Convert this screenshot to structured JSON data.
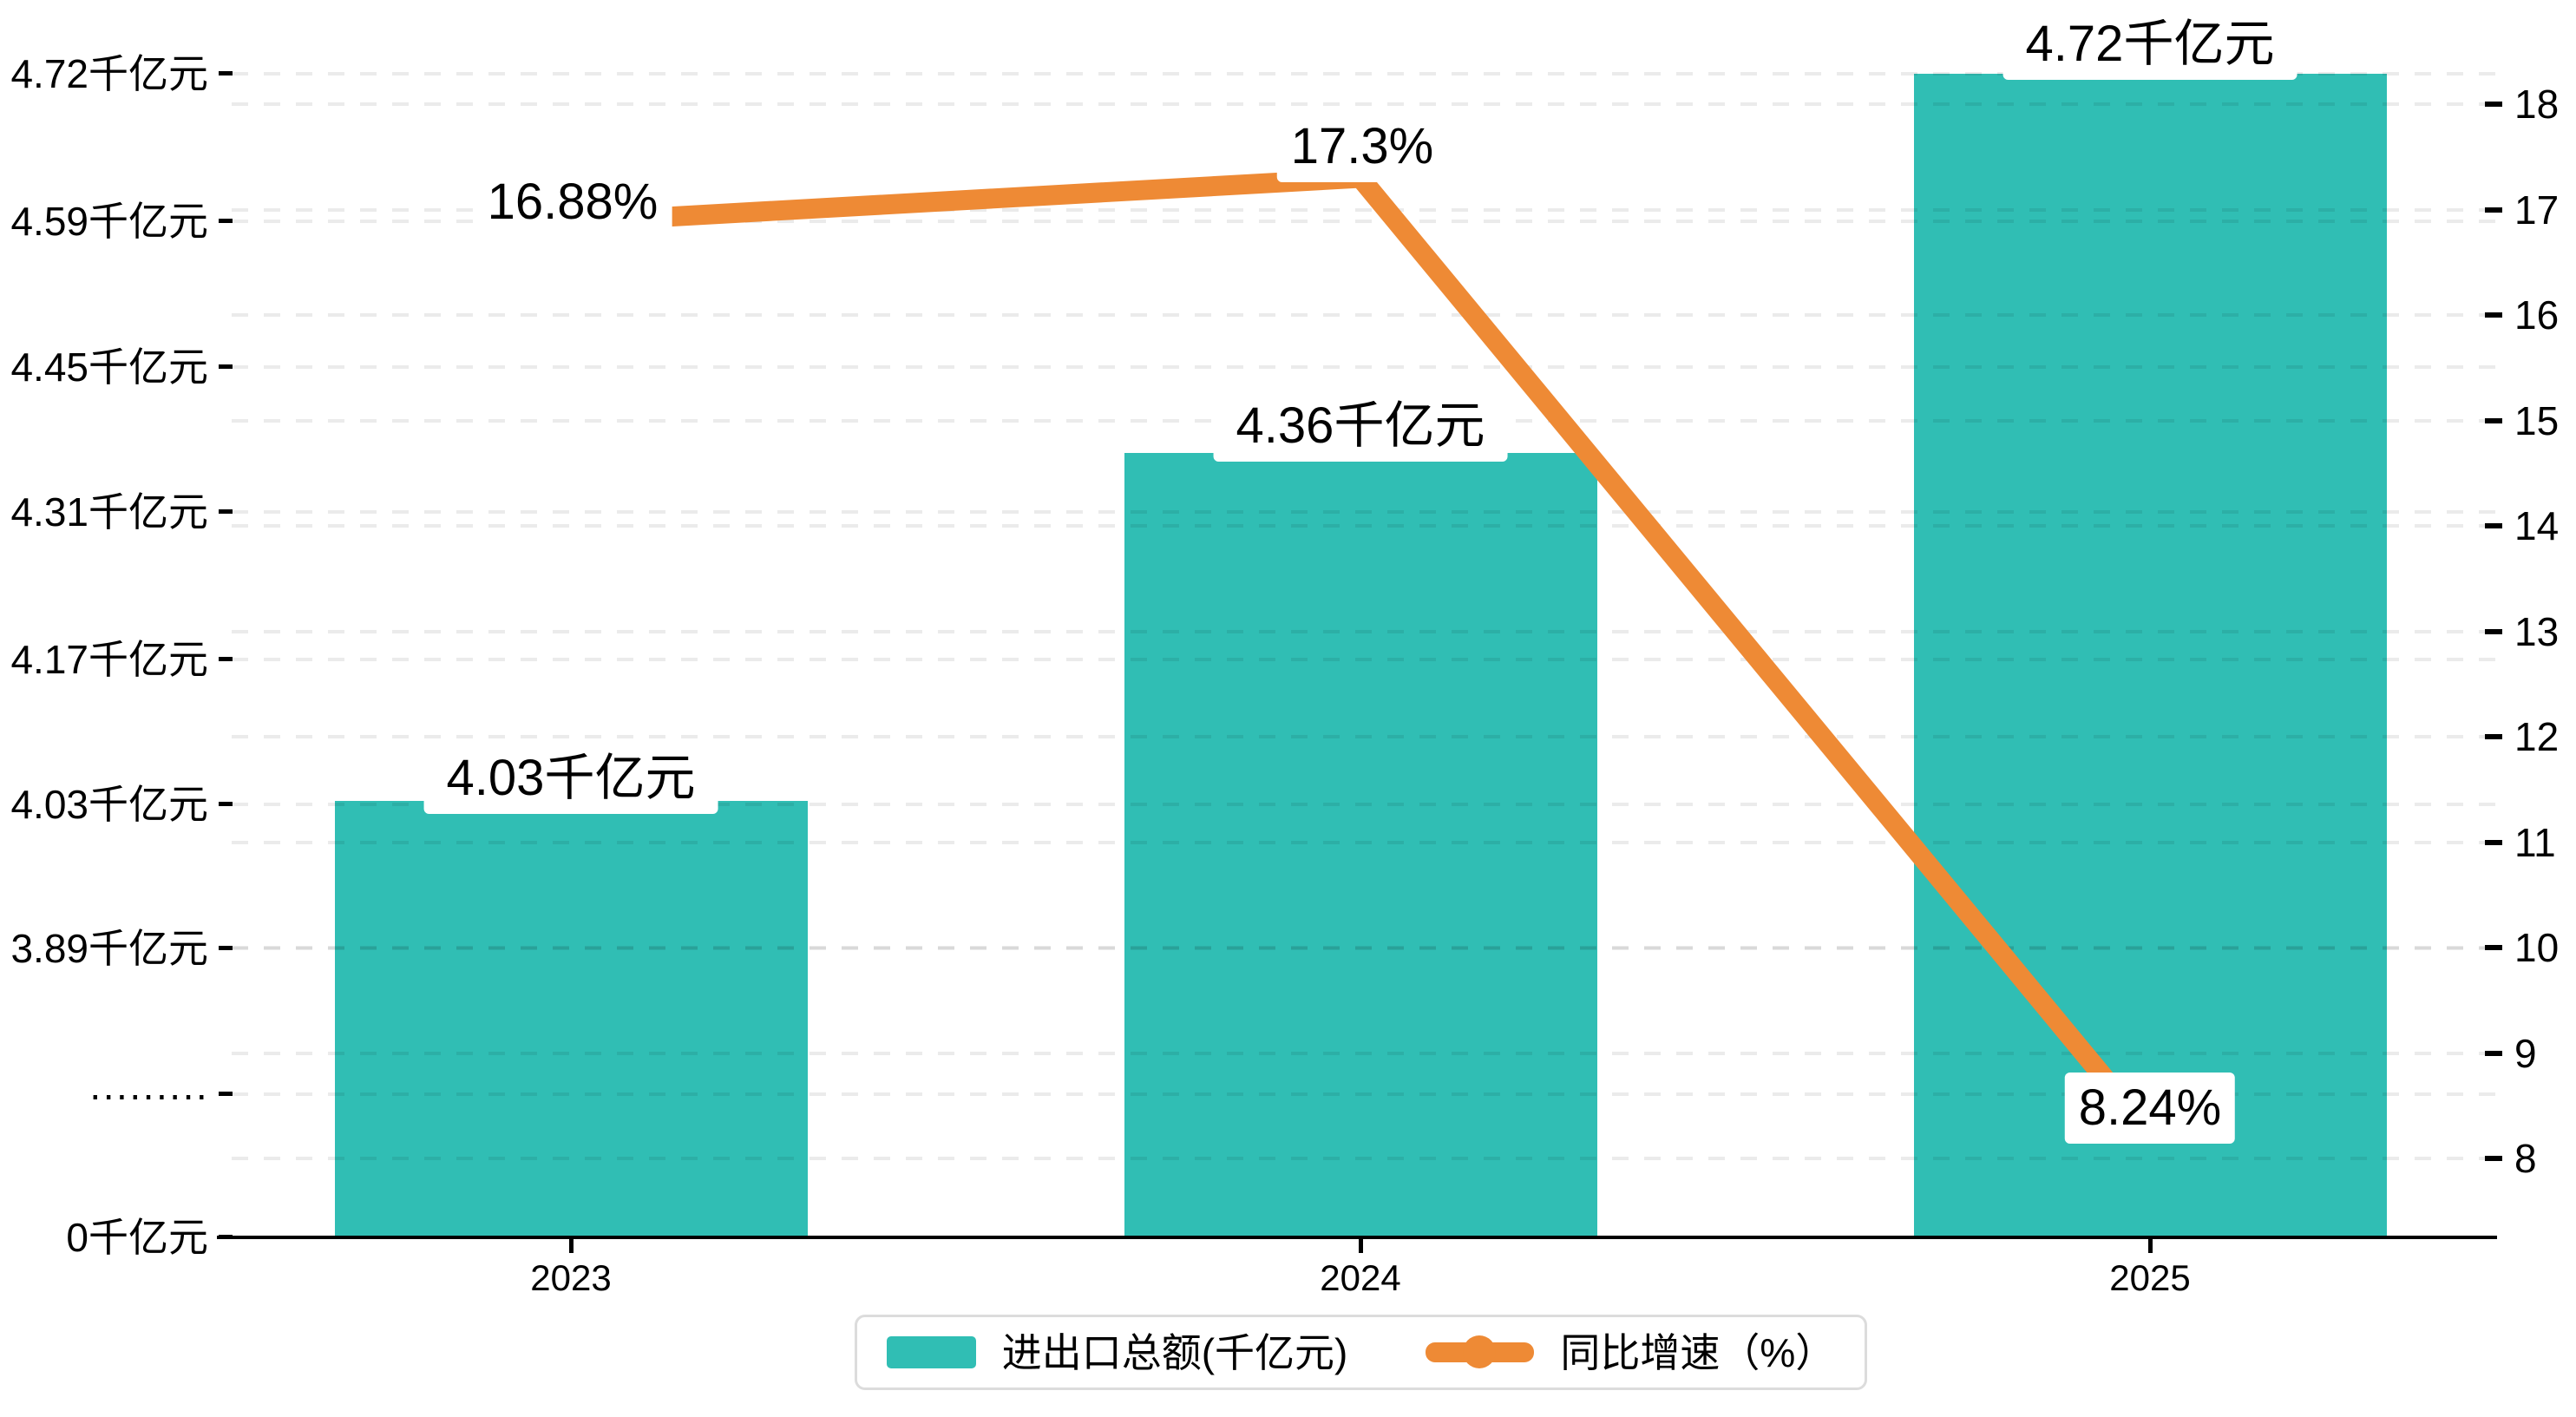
{
  "chart_data": {
    "type": "combo",
    "categories": [
      "2023",
      "2024",
      "2025"
    ],
    "series": [
      {
        "name": "进出口总额(千亿元)",
        "type": "bar",
        "axis": "left",
        "color": "#30BEB4",
        "values": [
          4.03,
          4.36,
          4.72
        ],
        "data_labels": [
          "4.03千亿元",
          "4.36千亿元",
          "4.72千亿元"
        ]
      },
      {
        "name": "同比增速（%）",
        "type": "line",
        "axis": "right",
        "color": "#EE8A35",
        "values": [
          16.88,
          17.3,
          8.24
        ],
        "data_labels": [
          "16.88%",
          "17.3%",
          "8.24%"
        ]
      }
    ],
    "left_axis": {
      "unit": "千亿元",
      "broken_axis": true,
      "tick_labels": [
        "4.72千亿元",
        "4.59千亿元",
        "4.45千亿元",
        "4.31千亿元",
        "4.17千亿元",
        "4.03千亿元",
        "3.89千亿元",
        "·········",
        "0千亿元"
      ]
    },
    "right_axis": {
      "min": 8,
      "max": 18,
      "step": 1,
      "tick_labels": [
        "18",
        "17",
        "16",
        "15",
        "14",
        "13",
        "12",
        "11",
        "10",
        "9",
        "8"
      ]
    },
    "grid": {
      "horizontal_dashed": true
    },
    "legend": {
      "position": "bottom-center",
      "items": [
        "进出口总额(千亿元)",
        "同比增速（%）"
      ]
    }
  },
  "colors": {
    "bar": "#30BEB4",
    "line": "#EE8A35",
    "axis": "#000000",
    "grid": "rgba(0,0,0,0.08)",
    "label_bg": "#FFFFFF",
    "legend_border": "#DCDCDC"
  }
}
